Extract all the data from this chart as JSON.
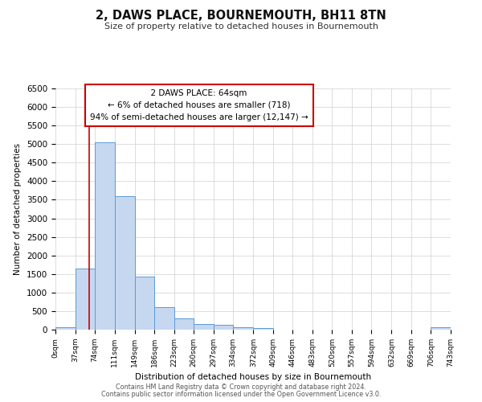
{
  "title": "2, DAWS PLACE, BOURNEMOUTH, BH11 8TN",
  "subtitle": "Size of property relative to detached houses in Bournemouth",
  "xlabel": "Distribution of detached houses by size in Bournemouth",
  "ylabel": "Number of detached properties",
  "bin_edges": [
    0,
    37,
    74,
    111,
    149,
    186,
    223,
    260,
    297,
    334,
    372,
    409,
    446,
    483,
    520,
    557,
    594,
    632,
    669,
    706,
    743
  ],
  "bar_values": [
    75,
    1650,
    5050,
    3600,
    1420,
    610,
    295,
    145,
    120,
    70,
    40,
    0,
    0,
    0,
    0,
    0,
    0,
    0,
    0,
    70
  ],
  "bar_color": "#c5d8f0",
  "bar_edge_color": "#5b9bd5",
  "ylim": [
    0,
    6500
  ],
  "yticks": [
    0,
    500,
    1000,
    1500,
    2000,
    2500,
    3000,
    3500,
    4000,
    4500,
    5000,
    5500,
    6000,
    6500
  ],
  "property_size": 64,
  "property_line_color": "#cc0000",
  "annotation_title": "2 DAWS PLACE: 64sqm",
  "annotation_line1": "← 6% of detached houses are smaller (718)",
  "annotation_line2": "94% of semi-detached houses are larger (12,147) →",
  "annotation_box_color": "#ffffff",
  "annotation_box_edge": "#cc0000",
  "footer_line1": "Contains HM Land Registry data © Crown copyright and database right 2024.",
  "footer_line2": "Contains public sector information licensed under the Open Government Licence v3.0.",
  "background_color": "#ffffff",
  "grid_color": "#d0d0d0"
}
